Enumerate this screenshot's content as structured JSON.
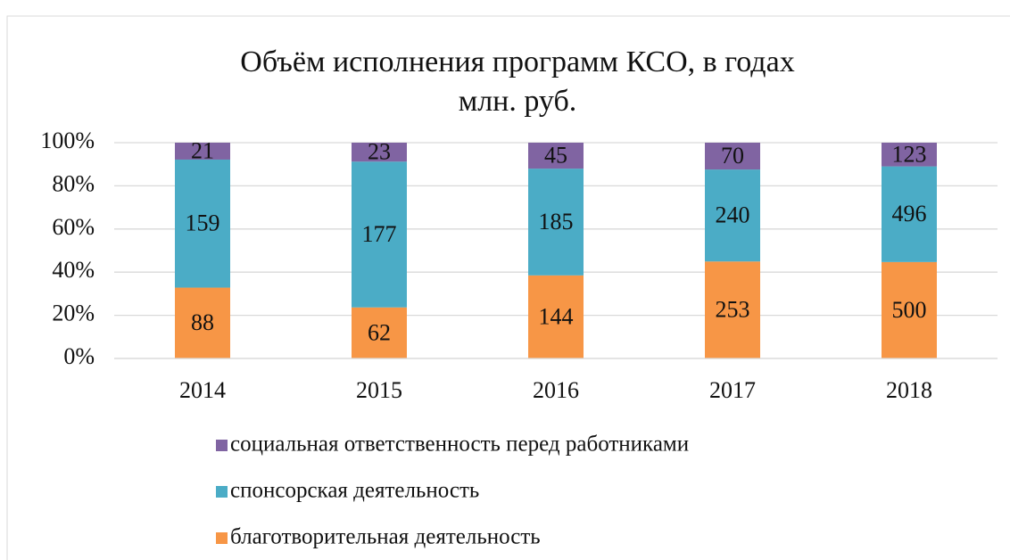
{
  "chart_data": {
    "type": "bar",
    "stacking": "percent",
    "title": "Объём исполнения программ КСО, в годах",
    "subtitle": "млн. руб.",
    "categories": [
      "2014",
      "2015",
      "2016",
      "2017",
      "2018"
    ],
    "series": [
      {
        "name": "благотворительная деятельность",
        "color": "#f79646",
        "values": [
          88,
          62,
          144,
          253,
          500
        ]
      },
      {
        "name": "спонсорская деятельность",
        "color": "#4bacc6",
        "values": [
          159,
          177,
          185,
          240,
          496
        ]
      },
      {
        "name": "социальная ответственность перед работниками",
        "color": "#8064a2",
        "values": [
          21,
          23,
          45,
          70,
          123
        ]
      }
    ],
    "ylim": [
      0,
      100
    ],
    "yticks": [
      {
        "value": 0,
        "label": "0%"
      },
      {
        "value": 20,
        "label": "20%"
      },
      {
        "value": 40,
        "label": "40%"
      },
      {
        "value": 60,
        "label": "60%"
      },
      {
        "value": 80,
        "label": "80%"
      },
      {
        "value": 100,
        "label": "100%"
      }
    ],
    "grid": true,
    "legend": "bottom"
  }
}
